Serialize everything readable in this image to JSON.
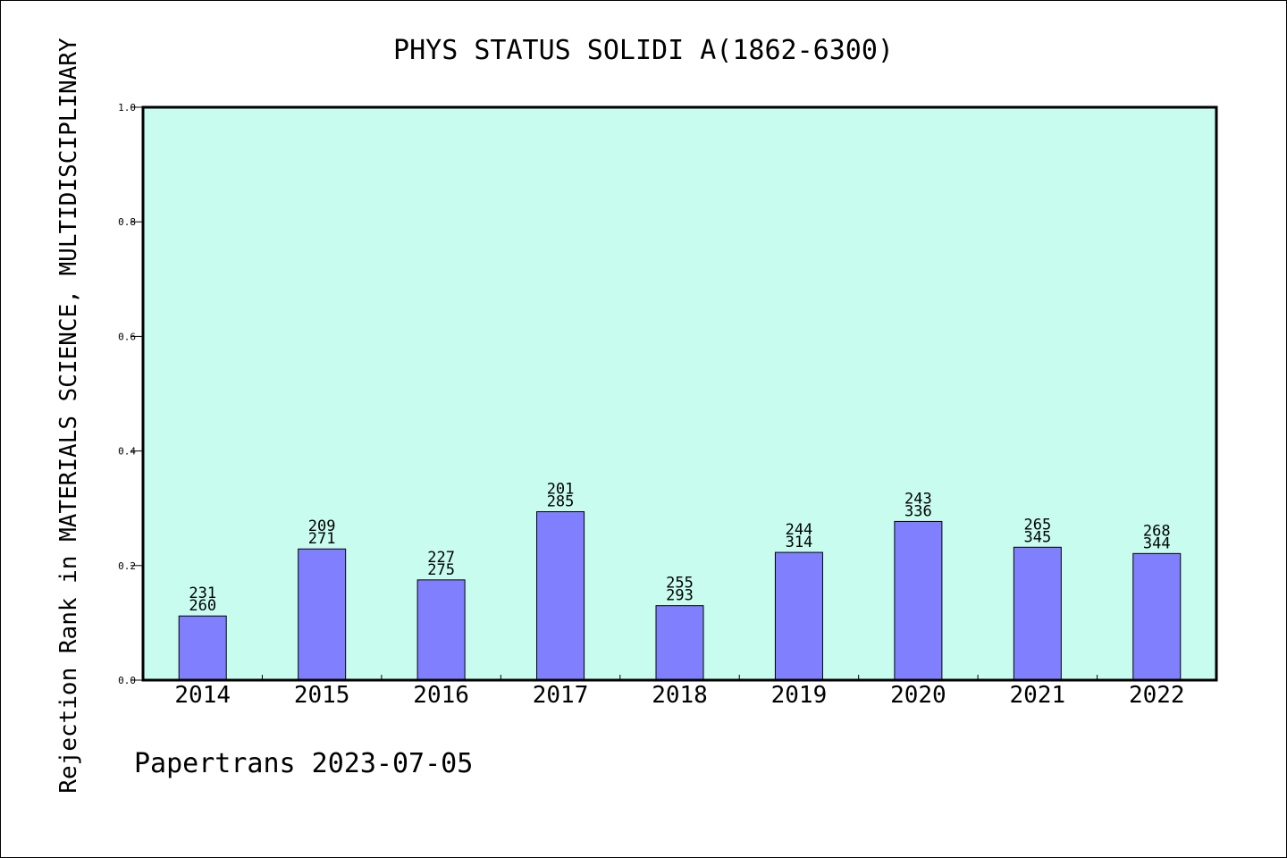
{
  "chart_data": {
    "type": "bar",
    "title": "PHYS STATUS SOLIDI A(1862-6300)",
    "ylabel": "Rejection Rank in MATERIALS SCIENCE, MULTIDISCIPLINARY",
    "xlabel": "",
    "ylim": [
      0,
      1.0
    ],
    "yticks": [
      "0.0",
      "0.2",
      "0.4",
      "0.6",
      "0.8",
      "1.0"
    ],
    "grid": false,
    "categories": [
      "2014",
      "2015",
      "2016",
      "2017",
      "2018",
      "2019",
      "2020",
      "2021",
      "2022"
    ],
    "values": [
      0.112,
      0.229,
      0.175,
      0.294,
      0.13,
      0.223,
      0.277,
      0.232,
      0.221
    ],
    "annotations": [
      [
        "231",
        "260"
      ],
      [
        "209",
        "271"
      ],
      [
        "227",
        "275"
      ],
      [
        "201",
        "285"
      ],
      [
        "255",
        "293"
      ],
      [
        "244",
        "314"
      ],
      [
        "243",
        "336"
      ],
      [
        "265",
        "345"
      ],
      [
        "268",
        "344"
      ]
    ],
    "colors": {
      "bar": "#8080ff",
      "plot_background": "#c8fcee",
      "bar_edge": "#000000"
    }
  },
  "footer": {
    "credit": "Papertrans 2023-07-05"
  }
}
